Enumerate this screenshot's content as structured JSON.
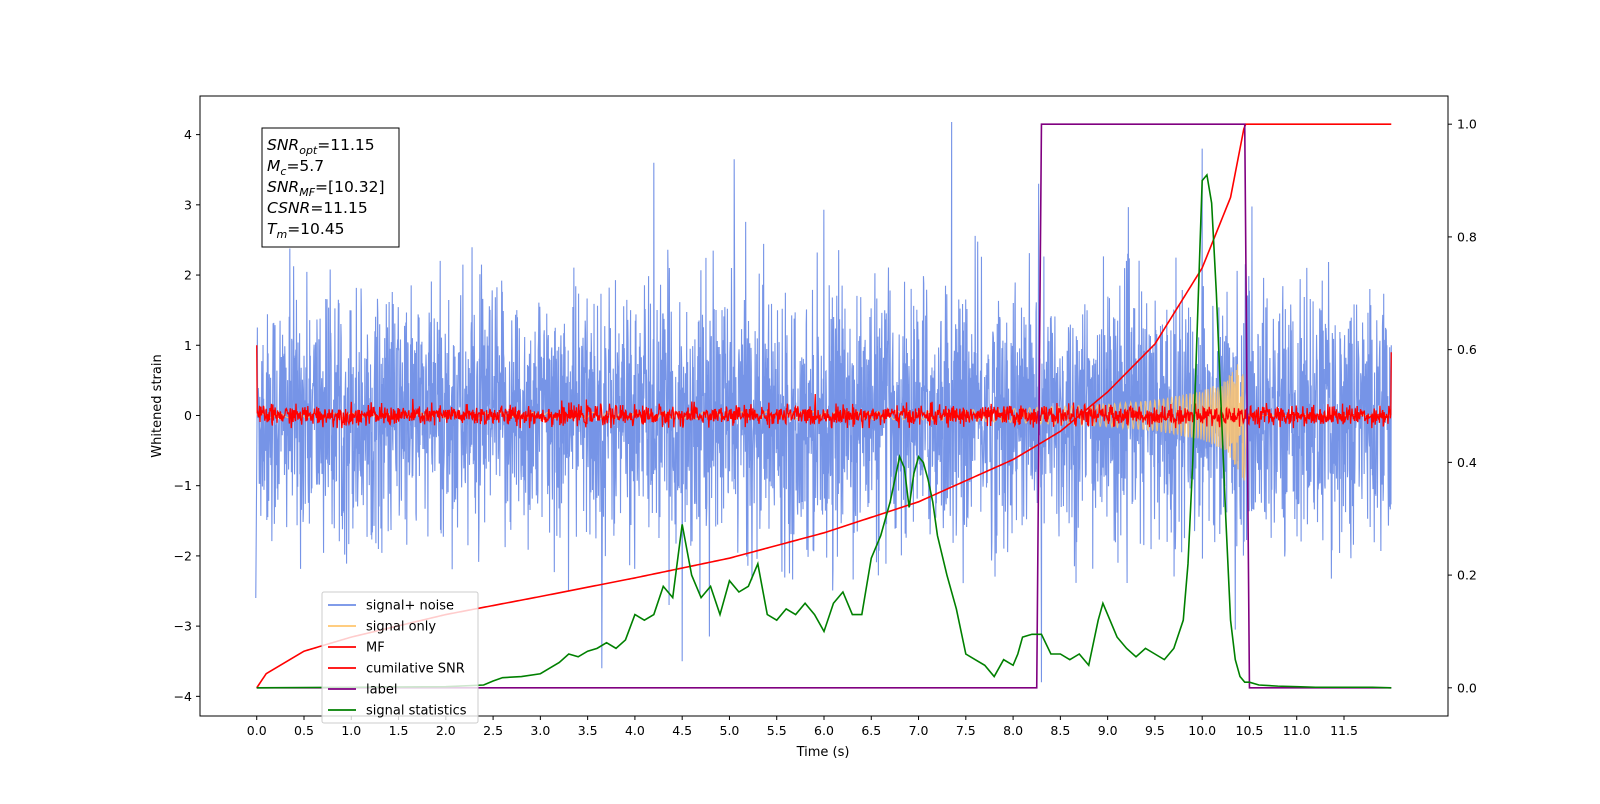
{
  "chart_data": {
    "type": "line",
    "xlabel": "Time (s)",
    "ylabel": "Whitened strain",
    "x_range": [
      -0.6,
      12.6
    ],
    "y_left_range": [
      -4.28,
      4.55
    ],
    "y_right_range": [
      -0.05,
      1.05
    ],
    "x_ticks": [
      "0.0",
      "0.5",
      "1.0",
      "1.5",
      "2.0",
      "2.5",
      "3.0",
      "3.5",
      "4.0",
      "4.5",
      "5.0",
      "5.5",
      "6.0",
      "6.5",
      "7.0",
      "7.5",
      "8.0",
      "8.5",
      "9.0",
      "9.5",
      "10.0",
      "10.5",
      "11.0",
      "11.5"
    ],
    "y_left_ticks": [
      "4",
      "3",
      "2",
      "1",
      "0",
      "−1",
      "−2",
      "−3",
      "−4"
    ],
    "y_right_ticks": [
      "1.0",
      "0.8",
      "0.6",
      "0.4",
      "0.2",
      "0.0"
    ],
    "annotation": {
      "lines": [
        {
          "base": "SNR",
          "sub": "opt",
          "value": "=11.15"
        },
        {
          "base": "M",
          "sub": "c",
          "value": "=5.7"
        },
        {
          "base": "SNR",
          "sub": "MF",
          "value": "=[10.32]"
        },
        {
          "base": "CSNR",
          "sub": "",
          "value": "=11.15"
        },
        {
          "base": "T",
          "sub": "m",
          "value": "=10.45"
        }
      ]
    },
    "legend": {
      "placement": "lower-left",
      "entries": [
        {
          "label": "signal+ noise",
          "color": "#6f8ee6"
        },
        {
          "label": "signal only",
          "color": "#ffc66e"
        },
        {
          "label": "MF",
          "color": "#ff0000"
        },
        {
          "label": "cumilative SNR",
          "color": "#ff0000"
        },
        {
          "label": "label",
          "color": "#800080"
        },
        {
          "label": "signal statistics",
          "color": "#008000"
        }
      ]
    },
    "series": [
      {
        "name": "signal+ noise",
        "axis": "left",
        "color": "#6f8ee6",
        "note_hidden": "",
        "x_start": 0.0,
        "x_end": 12.0,
        "envelope_max": [
          2.4,
          2.6,
          2.8,
          2.9,
          3.0,
          3.1,
          3.2,
          3.5,
          3.55,
          3.4,
          3.3,
          3.6,
          3.5,
          3.4,
          3.3,
          3.6,
          3.4,
          3.5,
          3.3,
          3.4,
          3.4,
          3.3,
          3.5,
          3.2,
          3.0,
          2.8
        ],
        "envelope_min": [
          -2.6,
          -2.7,
          -2.9,
          -3.0,
          -3.1,
          -3.2,
          -3.3,
          -3.4,
          -3.6,
          -3.5,
          -3.4,
          -3.5,
          -3.3,
          -3.3,
          -3.4,
          -3.4,
          -3.4,
          -3.2,
          -3.3,
          -3.2,
          -3.2,
          -3.0,
          -3.2,
          -2.9,
          -2.8,
          -2.7
        ],
        "peaks": [
          [
            7.35,
            4.18
          ],
          [
            10.0,
            3.8
          ],
          [
            8.27,
            3.3
          ],
          [
            4.2,
            3.6
          ],
          [
            5.05,
            3.65
          ],
          [
            -0.01,
            -2.6
          ],
          [
            4.5,
            -3.5
          ],
          [
            3.65,
            -3.6
          ],
          [
            8.3,
            -3.8
          ],
          [
            10.35,
            -3.05
          ]
        ]
      },
      {
        "name": "signal only",
        "axis": "left",
        "color": "#ffc66e",
        "x": [
          0.0,
          7.0,
          8.0,
          9.0,
          9.5,
          10.0,
          10.25,
          10.45,
          10.47,
          12.0
        ],
        "amplitude": [
          0.03,
          0.06,
          0.1,
          0.16,
          0.22,
          0.35,
          0.5,
          0.95,
          0.0,
          0.0
        ]
      },
      {
        "name": "MF",
        "axis": "left",
        "color": "#ff0000",
        "x_start": 0.0,
        "x_end": 12.0,
        "noise_amplitude": 0.13,
        "edges": [
          [
            0.0,
            1.0
          ],
          [
            12.0,
            0.9
          ]
        ]
      },
      {
        "name": "cumilative SNR",
        "axis": "right",
        "color": "#ff0000",
        "x": [
          0.0,
          0.1,
          0.5,
          1.0,
          2.0,
          3.0,
          4.0,
          5.0,
          6.0,
          7.0,
          8.0,
          8.5,
          9.0,
          9.5,
          10.0,
          10.3,
          10.45,
          12.0
        ],
        "y": [
          0.0,
          0.025,
          0.065,
          0.09,
          0.13,
          0.162,
          0.195,
          0.23,
          0.275,
          0.33,
          0.405,
          0.455,
          0.525,
          0.61,
          0.745,
          0.87,
          1.0,
          1.0
        ]
      },
      {
        "name": "label",
        "axis": "right",
        "color": "#800080",
        "x": [
          0.0,
          8.25,
          8.3,
          10.45,
          10.5,
          12.0
        ],
        "y": [
          0.0,
          0.0,
          1.0,
          1.0,
          0.0,
          0.0
        ]
      },
      {
        "name": "signal statistics",
        "axis": "right",
        "color": "#008000",
        "x": [
          0.0,
          1.0,
          2.0,
          2.4,
          2.5,
          2.6,
          2.8,
          3.0,
          3.1,
          3.2,
          3.3,
          3.4,
          3.5,
          3.6,
          3.7,
          3.8,
          3.9,
          4.0,
          4.1,
          4.2,
          4.3,
          4.4,
          4.5,
          4.6,
          4.7,
          4.8,
          4.9,
          5.0,
          5.1,
          5.2,
          5.3,
          5.4,
          5.5,
          5.6,
          5.7,
          5.8,
          5.9,
          6.0,
          6.1,
          6.2,
          6.3,
          6.4,
          6.5,
          6.6,
          6.7,
          6.8,
          6.85,
          6.9,
          6.95,
          7.0,
          7.05,
          7.1,
          7.15,
          7.2,
          7.3,
          7.4,
          7.5,
          7.6,
          7.7,
          7.8,
          7.9,
          8.0,
          8.05,
          8.1,
          8.2,
          8.3,
          8.4,
          8.5,
          8.6,
          8.7,
          8.8,
          8.9,
          8.95,
          9.0,
          9.1,
          9.2,
          9.3,
          9.4,
          9.5,
          9.6,
          9.7,
          9.8,
          9.85,
          9.9,
          9.95,
          10.0,
          10.05,
          10.1,
          10.15,
          10.2,
          10.25,
          10.3,
          10.35,
          10.4,
          10.45,
          10.5,
          10.6,
          10.8,
          11.0,
          11.2,
          11.5,
          11.8,
          12.0
        ],
        "y": [
          0.0,
          0.001,
          0.002,
          0.005,
          0.012,
          0.018,
          0.02,
          0.025,
          0.035,
          0.045,
          0.06,
          0.055,
          0.065,
          0.07,
          0.08,
          0.07,
          0.085,
          0.13,
          0.12,
          0.13,
          0.18,
          0.16,
          0.29,
          0.2,
          0.16,
          0.18,
          0.13,
          0.19,
          0.17,
          0.18,
          0.22,
          0.13,
          0.12,
          0.14,
          0.13,
          0.15,
          0.13,
          0.1,
          0.15,
          0.17,
          0.13,
          0.13,
          0.23,
          0.27,
          0.33,
          0.41,
          0.39,
          0.32,
          0.38,
          0.41,
          0.4,
          0.37,
          0.33,
          0.27,
          0.2,
          0.14,
          0.06,
          0.05,
          0.04,
          0.02,
          0.05,
          0.04,
          0.06,
          0.09,
          0.095,
          0.095,
          0.06,
          0.06,
          0.05,
          0.06,
          0.04,
          0.12,
          0.15,
          0.13,
          0.09,
          0.07,
          0.055,
          0.07,
          0.06,
          0.05,
          0.07,
          0.12,
          0.22,
          0.4,
          0.65,
          0.9,
          0.91,
          0.86,
          0.7,
          0.5,
          0.3,
          0.12,
          0.05,
          0.02,
          0.01,
          0.01,
          0.005,
          0.003,
          0.002,
          0.001,
          0.001,
          0.001,
          0.0
        ]
      }
    ]
  },
  "colors": {
    "signal_noise": "#6f8ee6",
    "signal_only": "#ffc66e",
    "mf": "#ff0000",
    "cumulative": "#ff0000",
    "label": "#800080",
    "stats": "#008000"
  }
}
